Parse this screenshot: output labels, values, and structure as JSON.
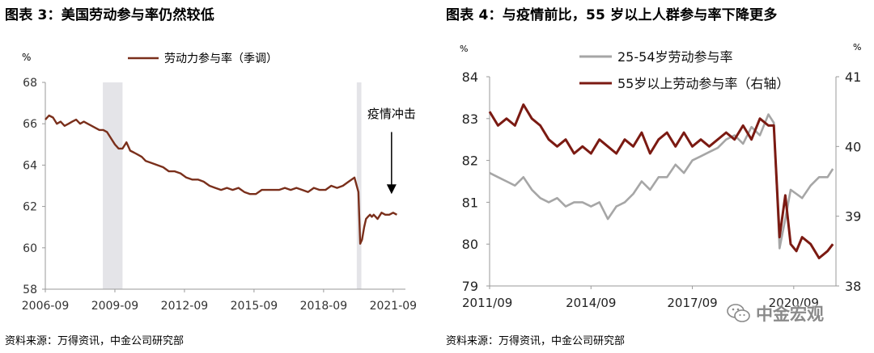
{
  "panels": {
    "left_title": "图表 3：美国劳动参与率仍然较低",
    "right_title": "图表 4：与疫情前比，55 岁以上人群参与率下降更多",
    "left_source": "资料来源：万得资讯，中金公司研究部",
    "right_source": "资料来源：万得资讯，中金公司研究部"
  },
  "watermark": {
    "text": "中金宏观",
    "icon": "wechat-icon"
  },
  "colors": {
    "dark_red": "#7b1a12",
    "brown": "#7a2f1b",
    "gray": "#a6a6a6",
    "shade": "#e4e4e8",
    "axis": "#9a9a9a"
  },
  "chart_data": [
    {
      "type": "line",
      "ylabel": "%",
      "ylim": [
        58,
        68
      ],
      "yticks": [
        58,
        60,
        62,
        64,
        66,
        68
      ],
      "xlim": [
        2006.67,
        2021.92
      ],
      "xticks": [
        {
          "x": 2006.67,
          "label": "2006-09"
        },
        {
          "x": 2009.67,
          "label": "2009-09"
        },
        {
          "x": 2012.67,
          "label": "2012-09"
        },
        {
          "x": 2015.67,
          "label": "2015-09"
        },
        {
          "x": 2018.67,
          "label": "2018-09"
        },
        {
          "x": 2021.67,
          "label": "2021-09"
        }
      ],
      "grid": false,
      "legend": "top-center",
      "shaded_periods": [
        [
          2009.15,
          2010.0
        ],
        [
          2020.1,
          2020.3
        ]
      ],
      "annotation": {
        "text": "疫情冲击",
        "x": 2021.6,
        "y_text": 66.2,
        "arrow_from": 65.6,
        "arrow_to": 62.6
      },
      "series": [
        {
          "name": "劳动力参与率（季调）",
          "color": "#7a2f1b",
          "x": [
            2006.67,
            2006.83,
            2007.0,
            2007.17,
            2007.33,
            2007.5,
            2007.67,
            2007.83,
            2008.0,
            2008.17,
            2008.33,
            2008.5,
            2008.67,
            2008.83,
            2009.0,
            2009.17,
            2009.33,
            2009.5,
            2009.67,
            2009.83,
            2010.0,
            2010.17,
            2010.33,
            2010.5,
            2010.67,
            2010.83,
            2011.0,
            2011.25,
            2011.5,
            2011.75,
            2012.0,
            2012.25,
            2012.5,
            2012.75,
            2013.0,
            2013.25,
            2013.5,
            2013.75,
            2014.0,
            2014.25,
            2014.5,
            2014.75,
            2015.0,
            2015.25,
            2015.5,
            2015.75,
            2016.0,
            2016.25,
            2016.5,
            2016.75,
            2017.0,
            2017.25,
            2017.5,
            2017.75,
            2018.0,
            2018.25,
            2018.5,
            2018.75,
            2019.0,
            2019.25,
            2019.5,
            2019.75,
            2020.0,
            2020.17,
            2020.25,
            2020.33,
            2020.42,
            2020.5,
            2020.58,
            2020.67,
            2020.75,
            2020.83,
            2021.0,
            2021.17,
            2021.33,
            2021.5,
            2021.67,
            2021.83
          ],
          "values": [
            66.2,
            66.4,
            66.3,
            66.0,
            66.1,
            65.9,
            66.0,
            66.1,
            66.2,
            66.0,
            66.1,
            66.0,
            65.9,
            65.8,
            65.7,
            65.7,
            65.6,
            65.3,
            65.0,
            64.8,
            64.8,
            65.1,
            64.7,
            64.6,
            64.5,
            64.4,
            64.2,
            64.1,
            64.0,
            63.9,
            63.7,
            63.7,
            63.6,
            63.4,
            63.3,
            63.3,
            63.2,
            63.0,
            62.9,
            62.8,
            62.9,
            62.8,
            62.9,
            62.7,
            62.6,
            62.6,
            62.8,
            62.8,
            62.8,
            62.8,
            62.9,
            62.8,
            62.9,
            62.8,
            62.7,
            62.9,
            62.8,
            62.8,
            63.0,
            62.9,
            63.0,
            63.2,
            63.4,
            62.7,
            60.2,
            60.4,
            61.0,
            61.4,
            61.5,
            61.6,
            61.5,
            61.6,
            61.4,
            61.7,
            61.6,
            61.6,
            61.7,
            61.6
          ]
        }
      ]
    },
    {
      "type": "line",
      "ylabel_left": "%",
      "ylabel_right": "%",
      "ylim_left": [
        79,
        84
      ],
      "yticks_left": [
        79,
        80,
        81,
        82,
        83,
        84
      ],
      "ylim_right": [
        38,
        41
      ],
      "yticks_right": [
        38,
        39,
        40,
        41
      ],
      "xlim": [
        2011.67,
        2021.92
      ],
      "xticks": [
        {
          "x": 2011.67,
          "label": "2011/09"
        },
        {
          "x": 2014.67,
          "label": "2014/09"
        },
        {
          "x": 2017.67,
          "label": "2017/09"
        },
        {
          "x": 2020.67,
          "label": "2020/09"
        }
      ],
      "grid": false,
      "legend": "top-center",
      "series": [
        {
          "name": "25-54岁劳动参与率",
          "color": "#a6a6a6",
          "axis": "left",
          "x": [
            2011.67,
            2011.92,
            2012.17,
            2012.42,
            2012.67,
            2012.92,
            2013.17,
            2013.42,
            2013.67,
            2013.92,
            2014.17,
            2014.42,
            2014.67,
            2014.92,
            2015.17,
            2015.42,
            2015.67,
            2015.92,
            2016.17,
            2016.42,
            2016.67,
            2016.92,
            2017.17,
            2017.42,
            2017.67,
            2017.92,
            2018.17,
            2018.42,
            2018.67,
            2018.92,
            2019.17,
            2019.42,
            2019.67,
            2019.92,
            2020.08,
            2020.25,
            2020.42,
            2020.58,
            2020.75,
            2020.92,
            2021.17,
            2021.42,
            2021.67,
            2021.83
          ],
          "values": [
            81.7,
            81.6,
            81.5,
            81.4,
            81.6,
            81.3,
            81.1,
            81.0,
            81.1,
            80.9,
            81.0,
            81.0,
            80.9,
            81.0,
            80.6,
            80.9,
            81.0,
            81.2,
            81.5,
            81.3,
            81.6,
            81.6,
            81.9,
            81.7,
            82.0,
            82.1,
            82.2,
            82.3,
            82.5,
            82.6,
            82.4,
            82.8,
            82.6,
            83.1,
            82.9,
            79.9,
            80.6,
            81.3,
            81.2,
            81.1,
            81.4,
            81.6,
            81.6,
            81.8
          ]
        },
        {
          "name": "55岁以上劳动参与率（右轴）",
          "color": "#7b1a12",
          "axis": "right",
          "x": [
            2011.67,
            2011.92,
            2012.17,
            2012.42,
            2012.67,
            2012.92,
            2013.17,
            2013.42,
            2013.67,
            2013.92,
            2014.17,
            2014.42,
            2014.67,
            2014.92,
            2015.17,
            2015.42,
            2015.67,
            2015.92,
            2016.17,
            2016.42,
            2016.67,
            2016.92,
            2017.17,
            2017.42,
            2017.67,
            2017.92,
            2018.17,
            2018.42,
            2018.67,
            2018.92,
            2019.17,
            2019.42,
            2019.67,
            2019.92,
            2020.08,
            2020.25,
            2020.42,
            2020.58,
            2020.75,
            2020.92,
            2021.17,
            2021.42,
            2021.67,
            2021.83
          ],
          "values": [
            40.5,
            40.3,
            40.4,
            40.3,
            40.6,
            40.4,
            40.3,
            40.1,
            40.0,
            40.1,
            39.9,
            40.0,
            39.9,
            40.1,
            40.0,
            39.9,
            40.1,
            40.0,
            40.2,
            39.9,
            40.1,
            40.2,
            40.0,
            40.2,
            40.0,
            40.1,
            40.0,
            40.1,
            40.2,
            40.1,
            40.3,
            40.1,
            40.4,
            40.3,
            40.3,
            38.7,
            39.3,
            38.6,
            38.5,
            38.7,
            38.6,
            38.4,
            38.5,
            38.6
          ]
        }
      ]
    }
  ]
}
